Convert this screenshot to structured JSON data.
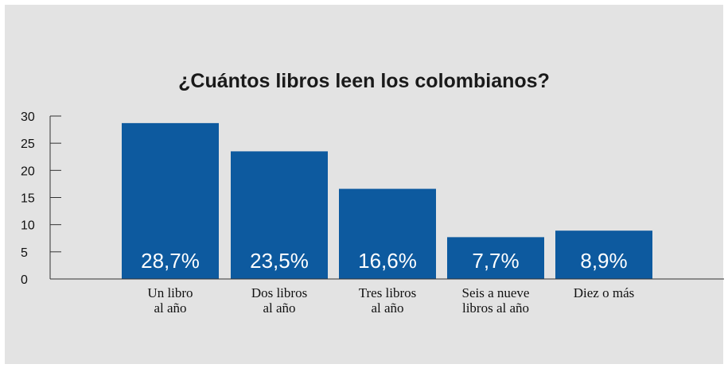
{
  "colors": {
    "background": "#e3e3e3",
    "bar": "#0d5a9f",
    "axis": "#333333",
    "data_label": "#ffffff"
  },
  "chart_data": {
    "type": "bar",
    "title": "¿Cuántos libros leen los colombianos?",
    "xlabel": "",
    "ylabel": "",
    "ylim": [
      0,
      30
    ],
    "yticks": [
      0,
      5,
      10,
      15,
      20,
      25,
      30
    ],
    "grid": false,
    "categories": [
      [
        "Un libro",
        "al año"
      ],
      [
        "Dos libros",
        "al año"
      ],
      [
        "Tres libros",
        "al año"
      ],
      [
        "Seis a nueve",
        "libros al año"
      ],
      [
        "Diez  o más"
      ]
    ],
    "values": [
      28.7,
      23.5,
      16.6,
      7.7,
      8.9
    ],
    "data_labels": [
      "28,7%",
      "23,5%",
      "16,6%",
      "7,7%",
      "8,9%"
    ]
  }
}
